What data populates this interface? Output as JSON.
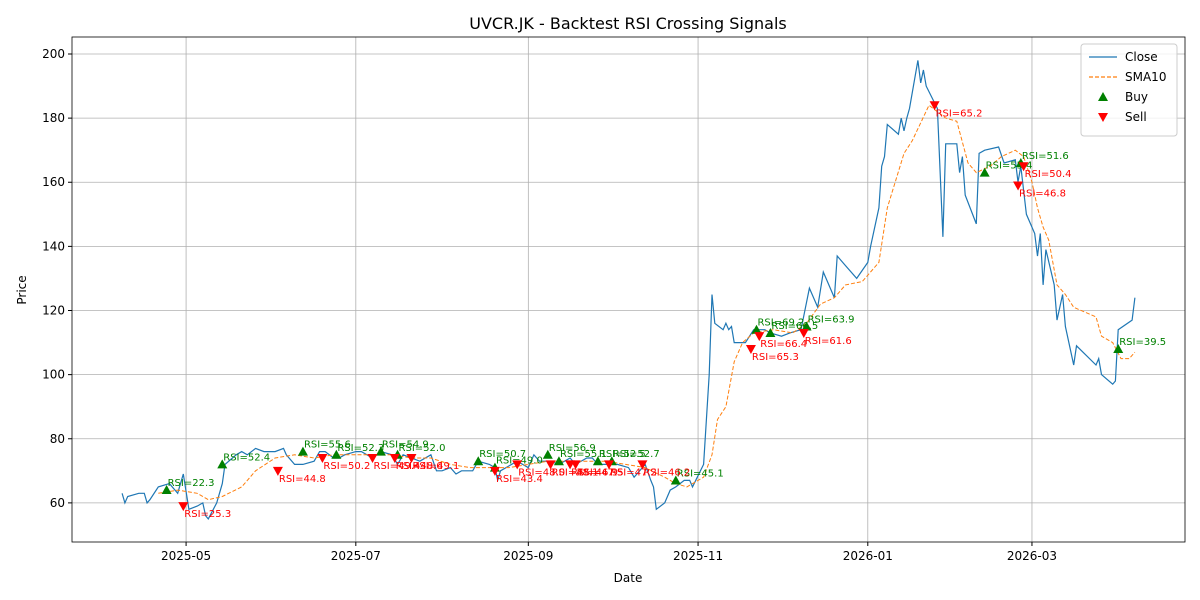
{
  "chart_data": {
    "type": "line",
    "title": "UVCR.JK - Backtest RSI Crossing Signals",
    "xlabel": "Date",
    "ylabel": "Price",
    "xlim": [
      "2025-03-21",
      "2026-04-25"
    ],
    "xticks": [
      "2025-05",
      "2025-07",
      "2025-09",
      "2025-11",
      "2026-01",
      "2026-03"
    ],
    "ylim": [
      47.8,
      205.3
    ],
    "yticks": [
      60,
      80,
      100,
      120,
      140,
      160,
      180,
      200
    ],
    "grid": true,
    "legend": "upper right",
    "series": [
      {
        "name": "Close",
        "kind": "line",
        "color": "#1f77b4",
        "x": [
          "2025-04-08",
          "2025-04-09",
          "2025-04-10",
          "2025-04-14",
          "2025-04-16",
          "2025-04-17",
          "2025-04-18",
          "2025-04-21",
          "2025-04-25",
          "2025-04-28",
          "2025-04-29",
          "2025-04-30",
          "2025-05-02",
          "2025-05-05",
          "2025-05-07",
          "2025-05-08",
          "2025-05-09",
          "2025-05-12",
          "2025-05-14",
          "2025-05-15",
          "2025-05-19",
          "2025-05-21",
          "2025-05-23",
          "2025-05-26",
          "2025-05-29",
          "2025-06-02",
          "2025-06-05",
          "2025-06-06",
          "2025-06-09",
          "2025-06-12",
          "2025-06-16",
          "2025-06-18",
          "2025-06-20",
          "2025-06-23",
          "2025-06-25",
          "2025-06-27",
          "2025-07-01",
          "2025-07-03",
          "2025-07-07",
          "2025-07-10",
          "2025-07-14",
          "2025-07-16",
          "2025-07-18",
          "2025-07-21",
          "2025-07-24",
          "2025-07-28",
          "2025-07-30",
          "2025-08-01",
          "2025-08-04",
          "2025-08-06",
          "2025-08-08",
          "2025-08-12",
          "2025-08-14",
          "2025-08-18",
          "2025-08-20",
          "2025-08-21",
          "2025-08-22",
          "2025-08-26",
          "2025-08-28",
          "2025-09-01",
          "2025-09-03",
          "2025-09-05",
          "2025-09-09",
          "2025-09-12",
          "2025-09-16",
          "2025-09-18",
          "2025-09-22",
          "2025-09-24",
          "2025-09-26",
          "2025-09-30",
          "2025-10-03",
          "2025-10-07",
          "2025-10-09",
          "2025-10-13",
          "2025-10-15",
          "2025-10-16",
          "2025-10-17",
          "2025-10-20",
          "2025-10-22",
          "2025-10-24",
          "2025-10-27",
          "2025-10-29",
          "2025-10-30",
          "2025-11-03",
          "2025-11-05",
          "2025-11-06",
          "2025-11-07",
          "2025-11-10",
          "2025-11-11",
          "2025-11-12",
          "2025-11-13",
          "2025-11-14",
          "2025-11-18",
          "2025-11-21",
          "2025-11-25",
          "2025-11-27",
          "2025-12-01",
          "2025-12-04",
          "2025-12-08",
          "2025-12-11",
          "2025-12-14",
          "2025-12-16",
          "2025-12-20",
          "2025-12-21",
          "2025-12-24",
          "2025-12-28",
          "2026-01-01",
          "2026-01-02",
          "2026-01-05",
          "2026-01-06",
          "2026-01-07",
          "2026-01-08",
          "2026-01-12",
          "2026-01-13",
          "2026-01-14",
          "2026-01-15",
          "2026-01-16",
          "2026-01-19",
          "2026-01-20",
          "2026-01-21",
          "2026-01-22",
          "2026-01-26",
          "2026-01-28",
          "2026-01-29",
          "2026-02-02",
          "2026-02-03",
          "2026-02-04",
          "2026-02-05",
          "2026-02-09",
          "2026-02-10",
          "2026-02-12",
          "2026-02-17",
          "2026-02-19",
          "2026-02-23",
          "2026-02-24",
          "2026-02-25",
          "2026-02-27",
          "2026-03-02",
          "2026-03-03",
          "2026-03-04",
          "2026-03-05",
          "2026-03-06",
          "2026-03-09",
          "2026-03-10",
          "2026-03-12",
          "2026-03-13",
          "2026-03-16",
          "2026-03-17",
          "2026-03-24",
          "2026-03-25",
          "2026-03-26",
          "2026-03-30",
          "2026-03-31",
          "2026-04-01",
          "2026-04-06",
          "2026-04-07"
        ],
        "values": [
          63,
          60,
          62,
          63,
          63,
          60,
          61,
          65,
          66,
          63,
          66,
          69,
          58,
          59,
          60,
          56,
          55,
          60,
          66,
          72,
          75,
          76,
          75,
          77,
          76,
          76,
          77,
          75,
          72,
          72,
          73,
          76,
          76,
          74,
          74,
          75,
          76,
          76,
          74,
          76,
          75,
          72,
          75,
          74,
          73,
          75,
          70,
          70,
          71,
          69,
          70,
          70,
          73,
          72,
          71,
          67,
          70,
          72,
          73,
          71,
          75,
          73,
          73,
          72,
          74,
          72,
          74,
          74,
          72,
          72,
          72,
          71,
          68,
          72,
          67,
          65,
          58,
          60,
          64,
          65,
          67,
          67,
          65,
          72,
          100,
          125,
          116,
          114,
          116,
          114,
          115,
          110,
          110,
          114,
          114,
          113,
          112,
          113,
          114,
          127,
          121,
          132,
          124,
          137,
          134,
          130,
          135,
          140,
          152,
          165,
          168,
          178,
          175,
          180,
          176,
          180,
          183,
          198,
          191,
          195,
          190,
          183,
          143,
          172,
          172,
          163,
          168,
          156,
          147,
          169,
          170,
          171,
          166,
          167,
          160,
          165,
          150,
          144,
          137,
          144,
          128,
          139,
          128,
          117,
          125,
          115,
          103,
          109,
          103,
          105,
          100,
          97,
          98,
          114,
          117,
          124
        ]
      },
      {
        "name": "SMA10",
        "kind": "line",
        "dash": true,
        "color": "#ff7f0e",
        "x": [
          "2025-04-21",
          "2025-04-28",
          "2025-05-05",
          "2025-05-09",
          "2025-05-14",
          "2025-05-21",
          "2025-05-26",
          "2025-06-02",
          "2025-06-09",
          "2025-06-16",
          "2025-06-23",
          "2025-06-30",
          "2025-07-07",
          "2025-07-14",
          "2025-07-21",
          "2025-07-28",
          "2025-08-04",
          "2025-08-11",
          "2025-08-18",
          "2025-08-25",
          "2025-09-01",
          "2025-09-08",
          "2025-09-15",
          "2025-09-22",
          "2025-09-29",
          "2025-10-06",
          "2025-10-13",
          "2025-10-20",
          "2025-10-24",
          "2025-10-28",
          "2025-11-03",
          "2025-11-06",
          "2025-11-08",
          "2025-11-11",
          "2025-11-14",
          "2025-11-17",
          "2025-11-21",
          "2025-11-28",
          "2025-12-05",
          "2025-12-10",
          "2025-12-15",
          "2025-12-20",
          "2025-12-24",
          "2025-12-30",
          "2026-01-05",
          "2026-01-08",
          "2026-01-14",
          "2026-01-17",
          "2026-01-23",
          "2026-01-29",
          "2026-02-02",
          "2026-02-06",
          "2026-02-09",
          "2026-02-14",
          "2026-02-18",
          "2026-02-23",
          "2026-02-26",
          "2026-03-01",
          "2026-03-03",
          "2026-03-05",
          "2026-03-07",
          "2026-03-10",
          "2026-03-13",
          "2026-03-16",
          "2026-03-24",
          "2026-03-26",
          "2026-03-30",
          "2026-04-02",
          "2026-04-05",
          "2026-04-07"
        ],
        "values": [
          63,
          64,
          63,
          61,
          62,
          65,
          70,
          74,
          75,
          74,
          75,
          75,
          75,
          75,
          74,
          74,
          72,
          71,
          71,
          71,
          72,
          73,
          73,
          73,
          73,
          72,
          71,
          68,
          66,
          65,
          68,
          75,
          86,
          90,
          104,
          110,
          113,
          114,
          113,
          116,
          122,
          124,
          128,
          129,
          135,
          152,
          169,
          173,
          184,
          180,
          179,
          166,
          163,
          165,
          168,
          170,
          168,
          160,
          152,
          146,
          142,
          128,
          125,
          121,
          118,
          112,
          110,
          105,
          105,
          107
        ]
      },
      {
        "name": "Buy",
        "kind": "scatter",
        "marker": "triangle-up",
        "color": "#008000",
        "x": [
          "2025-04-24",
          "2025-05-14",
          "2025-06-12",
          "2025-06-24",
          "2025-07-10",
          "2025-07-16",
          "2025-08-14",
          "2025-08-20",
          "2025-09-08",
          "2025-09-12",
          "2025-09-26",
          "2025-10-01",
          "2025-10-24",
          "2025-11-22",
          "2025-11-27",
          "2025-12-10",
          "2026-02-12",
          "2026-02-25",
          "2026-04-01"
        ],
        "values": [
          64,
          72,
          76,
          75,
          76,
          75,
          73,
          71,
          75,
          73,
          73,
          73,
          67,
          114,
          113,
          115,
          163,
          166,
          108
        ],
        "annotations": [
          "RSI=22.3",
          "RSI=52.4",
          "RSI=55.6",
          "RSI=52.3",
          "RSI=54.9",
          "RSI=52.0",
          "RSI=50.7",
          "RSI=49.0",
          "RSI=56.9",
          "RSI=55.1",
          "RSI=52.5",
          "RSI=52.7",
          "RSI=45.1",
          "RSI=69.2",
          "RSI=66.5",
          "RSI=63.9",
          "RSI=55.4",
          "RSI=51.6",
          "RSI=39.5"
        ]
      },
      {
        "name": "Sell",
        "kind": "scatter",
        "marker": "triangle-down",
        "color": "#ff0000",
        "x": [
          "2025-04-30",
          "2025-06-03",
          "2025-06-19",
          "2025-07-07",
          "2025-07-15",
          "2025-07-21",
          "2025-08-20",
          "2025-08-28",
          "2025-09-09",
          "2025-09-16",
          "2025-09-18",
          "2025-09-30",
          "2025-10-12",
          "2025-11-20",
          "2025-11-23",
          "2025-12-09",
          "2026-01-25",
          "2026-02-24",
          "2026-02-26"
        ],
        "values": [
          59,
          70,
          74,
          74,
          74,
          74,
          70,
          72,
          72,
          72,
          72,
          72,
          72,
          108,
          112,
          113,
          184,
          159,
          165
        ],
        "annotations": [
          "RSI=25.3",
          "RSI=44.8",
          "RSI=50.2",
          "RSI=49.4",
          "RSI=48.6",
          "RSI=49.1",
          "RSI=43.4",
          "RSI=48.0",
          "RSI=48.1",
          "RSI=46.9",
          "RSI=47.5",
          "RSI=47.2",
          "RSI=46.2",
          "RSI=65.3",
          "RSI=66.4",
          "RSI=61.6",
          "RSI=65.2",
          "RSI=46.8",
          "RSI=50.4"
        ]
      }
    ]
  }
}
